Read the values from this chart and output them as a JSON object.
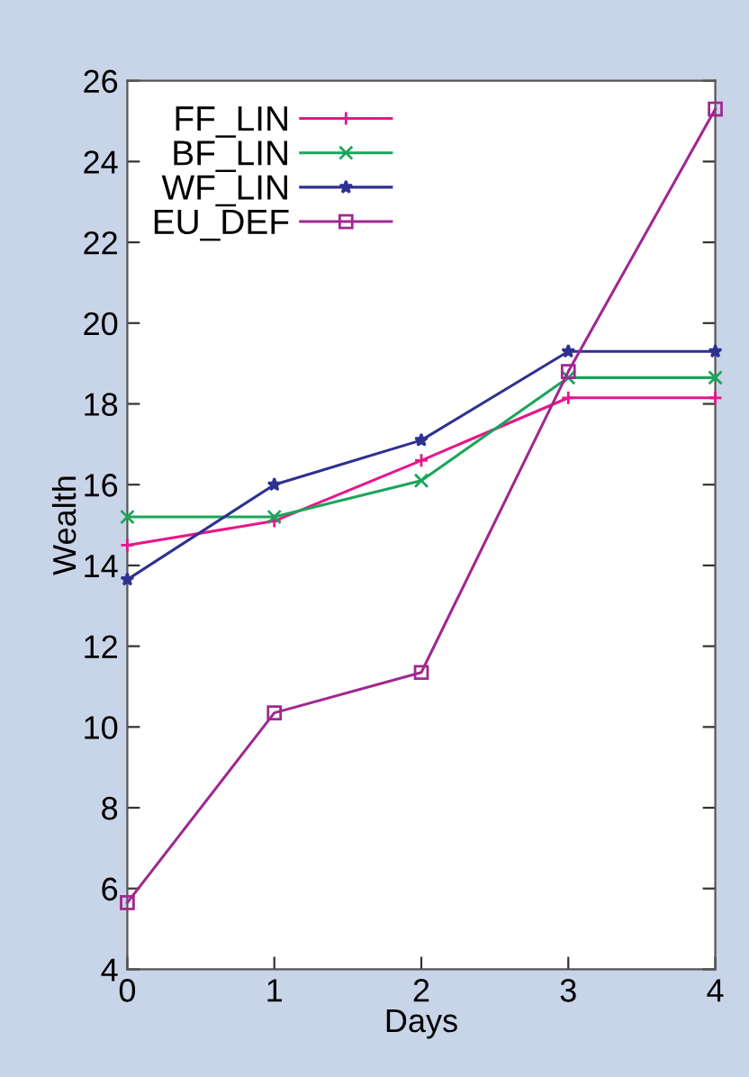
{
  "chart_data": {
    "type": "line",
    "xlabel": "Days",
    "ylabel": "Wealth",
    "x": [
      0,
      1,
      2,
      3,
      4
    ],
    "xlim": [
      0,
      4
    ],
    "xticks": [
      0,
      1,
      2,
      3,
      4
    ],
    "ylim": [
      4,
      26
    ],
    "yticks": [
      4,
      6,
      8,
      10,
      12,
      14,
      16,
      18,
      20,
      22,
      24,
      26
    ],
    "grid": false,
    "legend": "top left",
    "line_style": "solid",
    "series": [
      {
        "name": "FF_LIN",
        "color": "#e8168a",
        "marker": "cross",
        "values": [
          14.5,
          15.1,
          16.6,
          18.15,
          18.15
        ]
      },
      {
        "name": "BF_LIN",
        "color": "#1aa55a",
        "marker": "cross",
        "values": [
          15.2,
          15.2,
          16.1,
          18.65,
          18.65
        ]
      },
      {
        "name": "WF_LIN",
        "color": "#2e3192",
        "marker": "star",
        "values": [
          13.65,
          16.0,
          17.1,
          19.3,
          19.3
        ]
      },
      {
        "name": "EU_DEF",
        "color": "#a0288f",
        "marker": "square",
        "values": [
          5.65,
          10.35,
          11.35,
          18.8,
          25.3
        ]
      }
    ]
  }
}
